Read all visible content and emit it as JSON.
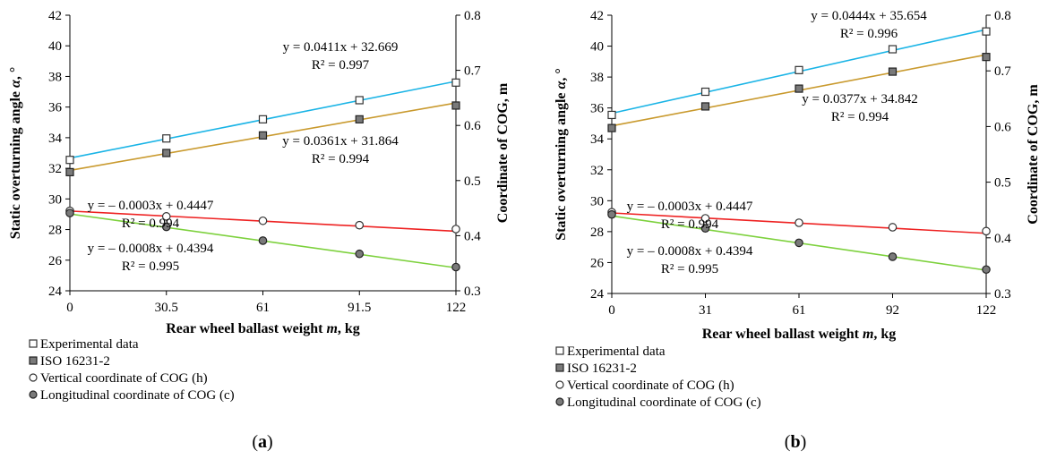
{
  "chart_data": [
    {
      "type": "line",
      "panel_label": "a",
      "xlabel_prefix": "Rear wheel ballast weight ",
      "xlabel_var": "m",
      "xlabel_suffix": ", kg",
      "ylabel_prefix": "Static overturning angle ",
      "ylabel_var": "α",
      "ylabel_suffix": ", °",
      "y2label": "Coordinate of COG, m",
      "x_categories": [
        "0",
        "30.5",
        "61",
        "91.5",
        "122"
      ],
      "ylim": [
        24,
        42
      ],
      "y_ticks": [
        "24",
        "26",
        "28",
        "30",
        "32",
        "34",
        "36",
        "38",
        "40",
        "42"
      ],
      "y2lim": [
        0.3,
        0.8
      ],
      "y2_ticks": [
        "0.3",
        "0.4",
        "0.5",
        "0.6",
        "0.7",
        "0.8"
      ],
      "series": [
        {
          "name": "Experimental data",
          "axis": "left",
          "marker": "open-square",
          "line_color": "#1ab4e6",
          "values": [
            32.55,
            33.95,
            35.2,
            36.45,
            37.6
          ],
          "fit": [
            32.669,
            0.0411
          ],
          "equation": "y = 0.0411x + 32.669",
          "r2": "R² = 0.997"
        },
        {
          "name": "ISO 16231-2",
          "axis": "left",
          "marker": "filled-square",
          "line_color": "#c99a2e",
          "values": [
            31.75,
            33.0,
            34.15,
            35.2,
            36.1
          ],
          "fit": [
            31.864,
            0.0361
          ],
          "equation": "y = 0.0361x + 31.864",
          "r2": "R² = 0.994"
        },
        {
          "name": "Vertical coordinate of COG (h)",
          "axis": "right",
          "marker": "open-circle",
          "line_color": "#ee2222",
          "values": [
            0.445,
            0.435,
            0.427,
            0.419,
            0.412
          ],
          "fit": [
            0.4447,
            -0.0003
          ],
          "equation": "y = – 0.0003x + 0.4447",
          "r2": "R² = 0.994"
        },
        {
          "name": "Longitudinal coordinate of COG (c)",
          "axis": "right",
          "marker": "filled-circle",
          "line_color": "#7dd13d",
          "values": [
            0.441,
            0.416,
            0.391,
            0.367,
            0.343
          ],
          "fit": [
            0.4394,
            -0.0008
          ],
          "equation": "y = – 0.0008x + 0.4394",
          "r2": "R² = 0.995"
        }
      ]
    },
    {
      "type": "line",
      "panel_label": "b",
      "xlabel_prefix": "Rear wheel ballast weight ",
      "xlabel_var": "m",
      "xlabel_suffix": ", kg",
      "ylabel_prefix": "Static overturning angle ",
      "ylabel_var": "α",
      "ylabel_suffix": ", °",
      "y2label": "Coordinate of COG, m",
      "x_categories": [
        "0",
        "31",
        "61",
        "92",
        "122"
      ],
      "ylim": [
        24,
        42
      ],
      "y_ticks": [
        "24",
        "26",
        "28",
        "30",
        "32",
        "34",
        "36",
        "38",
        "40",
        "42"
      ],
      "y2lim": [
        0.3,
        0.8
      ],
      "y2_ticks": [
        "0.3",
        "0.4",
        "0.5",
        "0.6",
        "0.7",
        "0.8"
      ],
      "series": [
        {
          "name": "Experimental data",
          "axis": "left",
          "marker": "open-square",
          "line_color": "#1ab4e6",
          "values": [
            35.55,
            37.05,
            38.45,
            39.8,
            40.95
          ],
          "fit": [
            35.654,
            0.0444
          ],
          "equation": "y = 0.0444x + 35.654",
          "r2": "R² = 0.996"
        },
        {
          "name": "ISO 16231-2",
          "axis": "left",
          "marker": "filled-square",
          "line_color": "#c99a2e",
          "values": [
            34.7,
            36.1,
            37.25,
            38.35,
            39.3
          ],
          "fit": [
            34.842,
            0.0377
          ],
          "equation": "y = 0.0377x + 34.842",
          "r2": "R² = 0.994"
        },
        {
          "name": "Vertical coordinate of COG (h)",
          "axis": "right",
          "marker": "open-circle",
          "line_color": "#ee2222",
          "values": [
            0.446,
            0.435,
            0.427,
            0.419,
            0.412
          ],
          "fit": [
            0.4447,
            -0.0003
          ],
          "equation": "y = – 0.0003x + 0.4447",
          "r2": "R² = 0.994"
        },
        {
          "name": "Longitudinal coordinate of COG (c)",
          "axis": "right",
          "marker": "filled-circle",
          "line_color": "#7dd13d",
          "values": [
            0.442,
            0.417,
            0.391,
            0.366,
            0.343
          ],
          "fit": [
            0.4394,
            -0.0008
          ],
          "equation": "y = – 0.0008x + 0.4394",
          "r2": "R² = 0.995"
        }
      ]
    }
  ]
}
